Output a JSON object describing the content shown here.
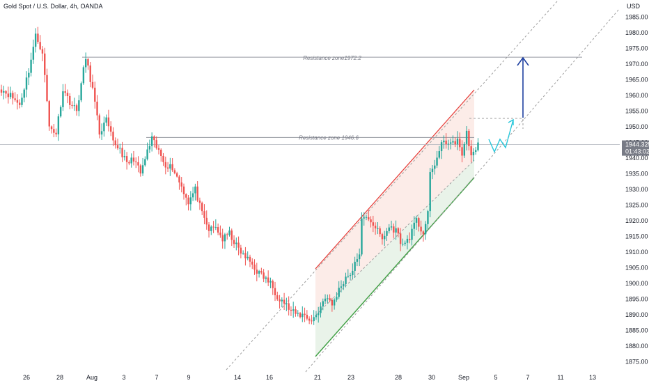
{
  "chart_data": {
    "type": "candlestick",
    "title": "Gold Spot / U.S. Dollar, 4h, OANDA",
    "currency_label": "USD",
    "ylim": [
      1872,
      1988
    ],
    "y_ticks": [
      1875.0,
      1880.0,
      1885.0,
      1890.0,
      1895.0,
      1900.0,
      1905.0,
      1910.0,
      1915.0,
      1920.0,
      1925.0,
      1930.0,
      1935.0,
      1940.0,
      1945.0,
      1950.0,
      1955.0,
      1960.0,
      1965.0,
      1970.0,
      1975.0,
      1980.0,
      1985.0
    ],
    "x_ticks": [
      "26",
      "28",
      "Aug",
      "3",
      "7",
      "9",
      "14",
      "16",
      "21",
      "23",
      "28",
      "30",
      "Sep",
      "5",
      "7",
      "11",
      "13"
    ],
    "last_price": "1944.325",
    "countdown": "01:43:02",
    "grid": false,
    "colors": {
      "up": "#26a69a",
      "down": "#ef5350",
      "channel_upper": "#e53935",
      "channel_lower": "#43a047",
      "projection_arrow": "#1e3fa0",
      "zigzag": "#26c6da"
    },
    "annotations": [
      {
        "text": "Resistance zone1972.2",
        "price": 1972.2
      },
      {
        "text": "Resistance zone 1946.6",
        "price": 1946.6
      }
    ],
    "anchors": [
      [
        0,
        1962
      ],
      [
        4,
        1960
      ],
      [
        8,
        1957
      ],
      [
        12,
        1968
      ],
      [
        15,
        1979
      ],
      [
        18,
        1974
      ],
      [
        21,
        1950
      ],
      [
        24,
        1948
      ],
      [
        27,
        1962
      ],
      [
        30,
        1958
      ],
      [
        33,
        1955
      ],
      [
        36,
        1968
      ],
      [
        37,
        1972
      ],
      [
        40,
        1962
      ],
      [
        43,
        1948
      ],
      [
        46,
        1952
      ],
      [
        49,
        1945
      ],
      [
        52,
        1943
      ],
      [
        55,
        1938
      ],
      [
        58,
        1940
      ],
      [
        61,
        1935
      ],
      [
        64,
        1942
      ],
      [
        66,
        1946
      ],
      [
        69,
        1942
      ],
      [
        72,
        1938
      ],
      [
        75,
        1937
      ],
      [
        79,
        1931
      ],
      [
        82,
        1926
      ],
      [
        85,
        1930
      ],
      [
        88,
        1922
      ],
      [
        91,
        1917
      ],
      [
        94,
        1918
      ],
      [
        97,
        1914
      ],
      [
        100,
        1916
      ],
      [
        103,
        1912
      ],
      [
        106,
        1909
      ],
      [
        109,
        1907
      ],
      [
        112,
        1904
      ],
      [
        115,
        1902
      ],
      [
        118,
        1900
      ],
      [
        121,
        1896
      ],
      [
        124,
        1894
      ],
      [
        127,
        1891
      ],
      [
        130,
        1890
      ],
      [
        133,
        1890
      ],
      [
        136,
        1888
      ],
      [
        139,
        1891
      ],
      [
        142,
        1896
      ],
      [
        145,
        1893
      ],
      [
        148,
        1898
      ],
      [
        151,
        1902
      ],
      [
        154,
        1904
      ],
      [
        157,
        1910
      ],
      [
        158,
        1920
      ],
      [
        161,
        1921
      ],
      [
        164,
        1918
      ],
      [
        167,
        1914
      ],
      [
        170,
        1918
      ],
      [
        173,
        1917
      ],
      [
        176,
        1912
      ],
      [
        179,
        1915
      ],
      [
        182,
        1920
      ],
      [
        185,
        1916
      ],
      [
        187,
        1922
      ],
      [
        188,
        1935
      ],
      [
        191,
        1940
      ],
      [
        194,
        1946
      ],
      [
        197,
        1944
      ],
      [
        200,
        1946
      ],
      [
        202,
        1940
      ],
      [
        204,
        1949
      ],
      [
        206,
        1940
      ],
      [
        209,
        1945
      ]
    ]
  }
}
